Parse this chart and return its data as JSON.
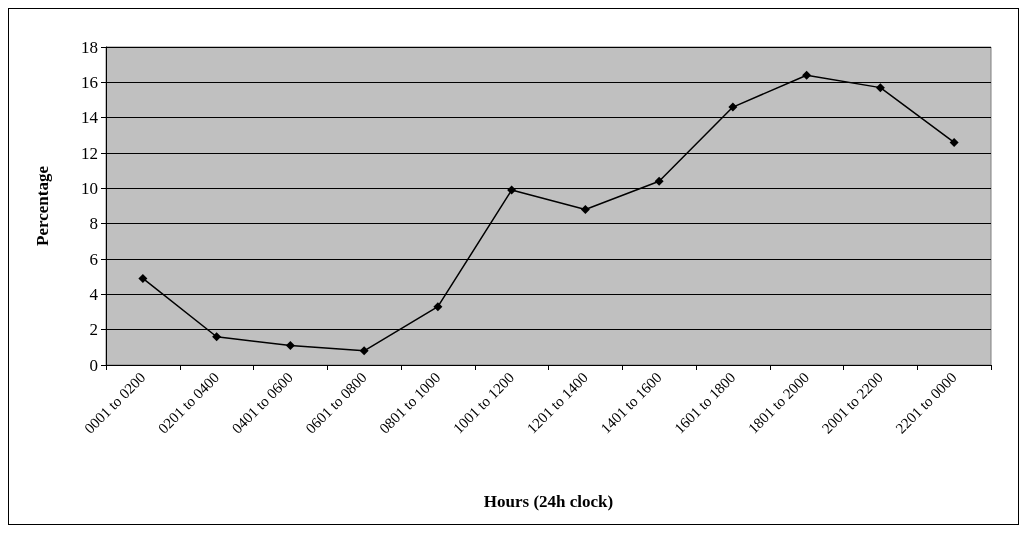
{
  "chart_data": {
    "type": "line",
    "xlabel": "Hours (24h clock)",
    "ylabel": "Percentage",
    "categories": [
      "0001 to 0200",
      "0201 to 0400",
      "0401 to 0600",
      "0601 to 0800",
      "0801 to 1000",
      "1001 to 1200",
      "1201 to 1400",
      "1401 to 1600",
      "1601 to 1800",
      "1801 to 2000",
      "2001 to 2200",
      "2201 to 0000"
    ],
    "series": [
      {
        "color": "#000000",
        "values": [
          4.9,
          1.6,
          1.1,
          0.8,
          3.3,
          9.9,
          8.8,
          10.4,
          14.6,
          16.4,
          15.7,
          12.6
        ]
      }
    ],
    "ylim": [
      0,
      18
    ],
    "yticks": [
      0,
      2,
      4,
      6,
      8,
      10,
      12,
      14,
      16,
      18
    ],
    "grid": "y",
    "marker": "diamond",
    "line_style": "solid"
  }
}
